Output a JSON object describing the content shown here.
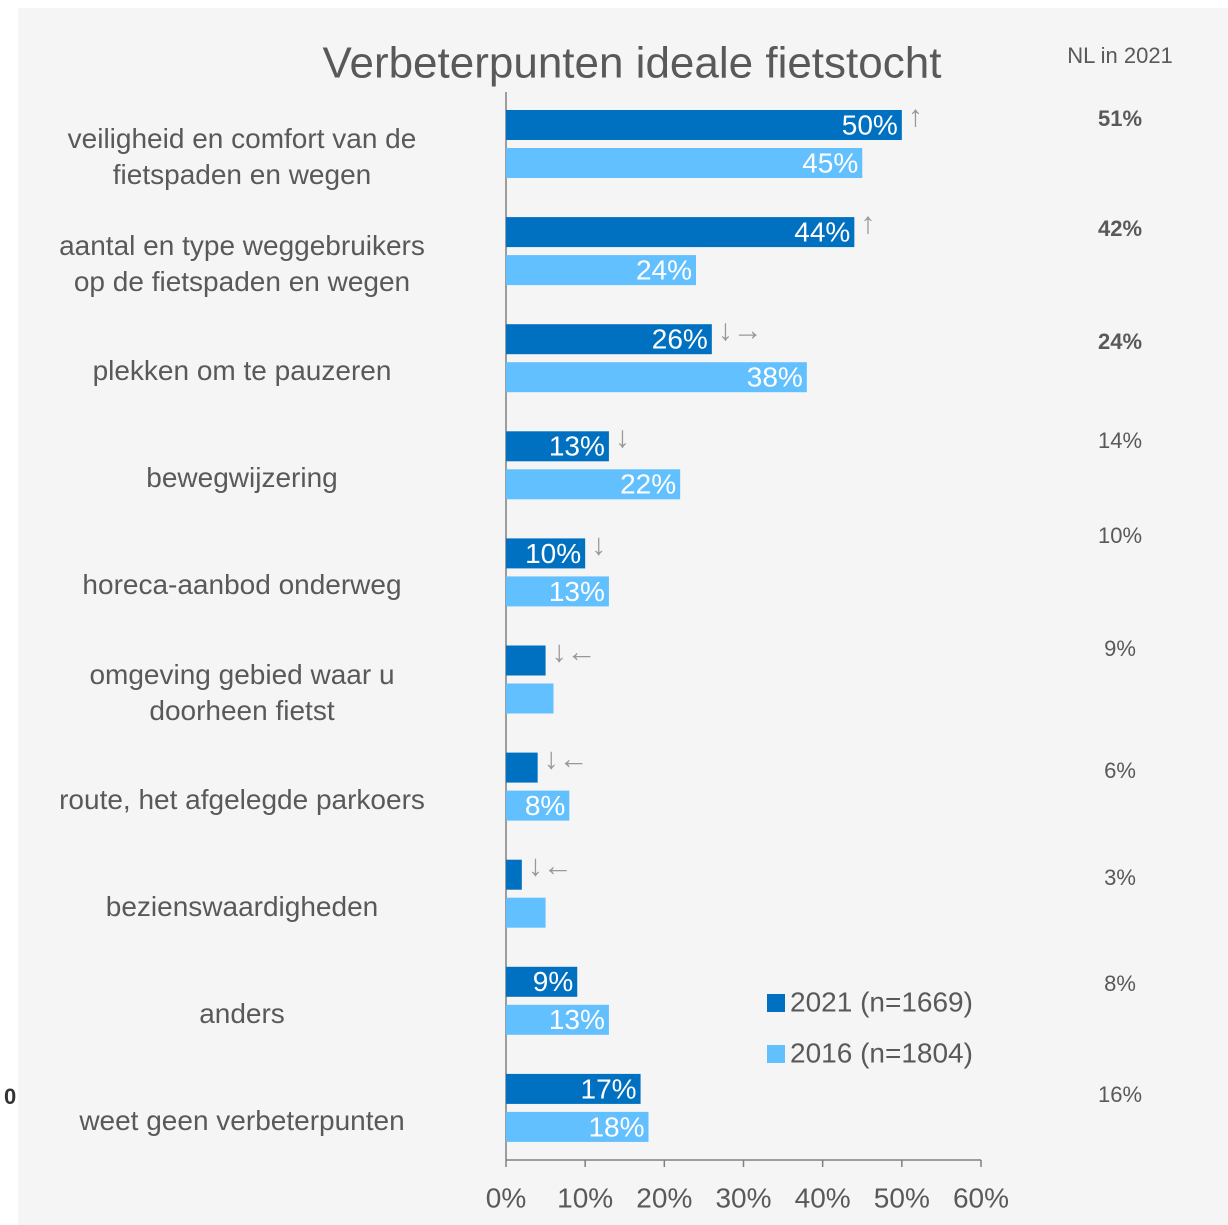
{
  "chart_data": {
    "type": "bar",
    "orientation": "horizontal",
    "title": "Verbeterpunten ideale fietstocht",
    "categories": [
      "veiligheid en comfort van de\nfietspaden en wegen",
      "aantal en type weggebruikers\nop de fietspaden en wegen",
      "plekken om te pauzeren",
      "bewegwijzering",
      "horeca-aanbod onderweg",
      "omgeving gebied waar u\ndoorheen fietst",
      "route, het afgelegde parkoers",
      "bezienswaardigheden",
      "anders",
      "weet geen verbeterpunten"
    ],
    "series": [
      {
        "name": "2021 (n=1669)",
        "color": "#0070c0",
        "values": [
          50,
          44,
          26,
          13,
          10,
          5,
          4,
          2,
          9,
          17
        ],
        "value_labels": [
          "50%",
          "44%",
          "26%",
          "13%",
          "10%",
          null,
          null,
          null,
          "9%",
          "17%"
        ]
      },
      {
        "name": "2016 (n=1804)",
        "color": "#63c0ff",
        "values": [
          45,
          24,
          38,
          22,
          13,
          6,
          8,
          5,
          13,
          18
        ],
        "value_labels": [
          "45%",
          "24%",
          "38%",
          "22%",
          "13%",
          null,
          "8%",
          null,
          "13%",
          "18%"
        ]
      }
    ],
    "arrows": [
      "↑",
      "↑",
      "↓→",
      "↓",
      "↓",
      "↓←",
      "↓←",
      "↓←",
      null,
      null
    ],
    "xlim": [
      0,
      60
    ],
    "xticks": [
      {
        "value": 0,
        "label": "0%"
      },
      {
        "value": 10,
        "label": "10%"
      },
      {
        "value": 20,
        "label": "20%"
      },
      {
        "value": 30,
        "label": "30%"
      },
      {
        "value": 40,
        "label": "40%"
      },
      {
        "value": 50,
        "label": "50%"
      },
      {
        "value": 60,
        "label": "60%"
      }
    ],
    "nl_2021": {
      "title": "NL in 2021",
      "values": [
        51,
        42,
        24,
        14,
        10,
        9,
        6,
        3,
        8,
        16
      ],
      "value_labels": [
        "51%",
        "42%",
        "24%",
        "14%",
        "10%",
        "9%",
        "6%",
        "3%",
        "8%",
        "16%"
      ],
      "bold": [
        true,
        true,
        true,
        false,
        false,
        false,
        false,
        false,
        false,
        false
      ]
    },
    "annotations": [
      "0"
    ]
  }
}
